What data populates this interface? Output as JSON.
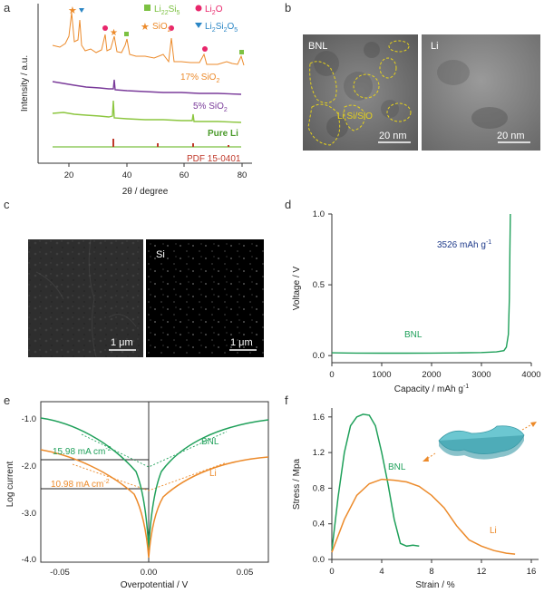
{
  "panels": {
    "a": {
      "letter": "a",
      "xlabel": "2θ / degree",
      "ylabel": "Intensity / a.u.",
      "xticks": [
        "20",
        "40",
        "60",
        "80"
      ],
      "legend": [
        "Li",
        "Si",
        "Li",
        "O",
        "SiO",
        "Li",
        "Si",
        "O"
      ],
      "traces": [
        "17% SiO",
        "5% SiO",
        "Pure Li",
        "PDF 15-0401"
      ],
      "colors": {
        "orange": "#ec8a2a",
        "purple": "#7a3b9a",
        "lime": "#8cc63f",
        "red": "#c0392b",
        "pink": "#e8266b",
        "green": "#7cc142",
        "blue": "#2b86c5"
      }
    },
    "b": {
      "letter": "b",
      "left_label": "BNL",
      "right_label": "Li",
      "region_label": "Li Si/SiO",
      "scale_left": "20 nm",
      "scale_right": "20 nm"
    },
    "c": {
      "letter": "c",
      "right_label": "Si",
      "scale_left": "1 μm",
      "scale_right": "1 μm"
    },
    "d": {
      "letter": "d",
      "xlabel": "Capacity / mAh g",
      "ylabel": "Voltage / V",
      "xticks": [
        "0",
        "1000",
        "2000",
        "3000",
        "4000"
      ],
      "yticks": [
        "0.0",
        "0.5",
        "1.0"
      ],
      "annotation": "3526 mAh g",
      "series_label": "BNL",
      "chart_data": {
        "type": "line",
        "series": [
          {
            "name": "BNL",
            "x": [
              0,
              500,
              1000,
              1500,
              2000,
              2500,
              3000,
              3300,
              3450,
              3500,
              3540,
              3560,
              3570,
              3580
            ],
            "y": [
              0.02,
              0.018,
              0.017,
              0.017,
              0.018,
              0.019,
              0.022,
              0.026,
              0.035,
              0.06,
              0.15,
              0.4,
              0.75,
              1.0
            ]
          }
        ],
        "xlim": [
          0,
          4000
        ],
        "ylim": [
          -0.05,
          1.0
        ]
      }
    },
    "e": {
      "letter": "e",
      "xlabel": "Overpotential / V",
      "ylabel": "Log current",
      "xticks": [
        "-0.05",
        "0.00",
        "0.05"
      ],
      "yticks": [
        "-1.0",
        "-2.0",
        "-3.0",
        "-4.0"
      ],
      "ann_bnl": "15.98 mA cm",
      "ann_li": "10.98 mA cm",
      "series_labels": [
        "BNL",
        "Li"
      ]
    },
    "f": {
      "letter": "f",
      "xlabel": "Strain / %",
      "ylabel": "Stress / Mpa",
      "xticks": [
        "0",
        "4",
        "8",
        "12",
        "16"
      ],
      "yticks": [
        "0.0",
        "0.4",
        "0.8",
        "1.2",
        "1.6"
      ],
      "series_labels": [
        "BNL",
        "Li"
      ],
      "chart_data": {
        "type": "line",
        "series": [
          {
            "name": "BNL",
            "x": [
              0,
              0.5,
              1,
              1.5,
              2,
              2.5,
              3,
              3.5,
              4,
              4.5,
              5,
              5.5,
              6,
              6.5,
              7
            ],
            "y": [
              0.1,
              0.7,
              1.2,
              1.5,
              1.6,
              1.63,
              1.62,
              1.5,
              1.2,
              0.85,
              0.45,
              0.18,
              0.15,
              0.16,
              0.15
            ]
          },
          {
            "name": "Li",
            "x": [
              0,
              1,
              2,
              3,
              4,
              5,
              6,
              7,
              8,
              9,
              10,
              11,
              12,
              13,
              14,
              14.7
            ],
            "y": [
              0.08,
              0.45,
              0.72,
              0.85,
              0.9,
              0.89,
              0.87,
              0.82,
              0.72,
              0.58,
              0.38,
              0.22,
              0.15,
              0.1,
              0.07,
              0.06
            ]
          }
        ],
        "xlim": [
          0,
          16
        ],
        "ylim": [
          0,
          1.7
        ]
      }
    }
  }
}
